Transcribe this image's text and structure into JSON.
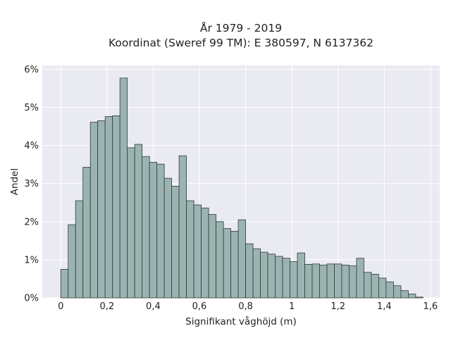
{
  "chart_data": {
    "type": "bar",
    "title_line1": "År 1979 - 2019",
    "title_line2": "Koordinat (Sweref 99 TM): E 380597, N 6137362",
    "xlabel": "Signifikant våghöjd (m)",
    "ylabel": "Andel",
    "xlim": [
      -0.08,
      1.64
    ],
    "ylim": [
      0,
      6.1
    ],
    "bin_width": 0.032,
    "bin_start": 0.0,
    "x_ticks": [
      0,
      0.2,
      0.4,
      0.6,
      0.8,
      1.0,
      1.2,
      1.4,
      1.6
    ],
    "x_tick_labels": [
      "0",
      "0,2",
      "0,4",
      "0,6",
      "0,8",
      "1",
      "1,2",
      "1,4",
      "1,6"
    ],
    "y_ticks": [
      0,
      1,
      2,
      3,
      4,
      5,
      6
    ],
    "y_tick_labels": [
      "0%",
      "1%",
      "2%",
      "3%",
      "4%",
      "5%",
      "6%"
    ],
    "grid": true,
    "bar_color": "#9bb4b2",
    "edge_color": "#2e3b3a",
    "background_color": "#eaeaf2",
    "values": [
      0.75,
      1.92,
      2.55,
      3.43,
      4.61,
      4.65,
      4.76,
      4.78,
      5.77,
      3.94,
      4.03,
      3.71,
      3.56,
      3.51,
      3.14,
      2.93,
      3.73,
      2.55,
      2.44,
      2.36,
      2.19,
      2.0,
      1.82,
      1.75,
      2.05,
      1.42,
      1.29,
      1.2,
      1.15,
      1.09,
      1.04,
      0.95,
      1.18,
      0.88,
      0.89,
      0.86,
      0.89,
      0.89,
      0.86,
      0.84,
      1.04,
      0.67,
      0.62,
      0.52,
      0.42,
      0.32,
      0.19,
      0.1,
      0.02
    ]
  }
}
